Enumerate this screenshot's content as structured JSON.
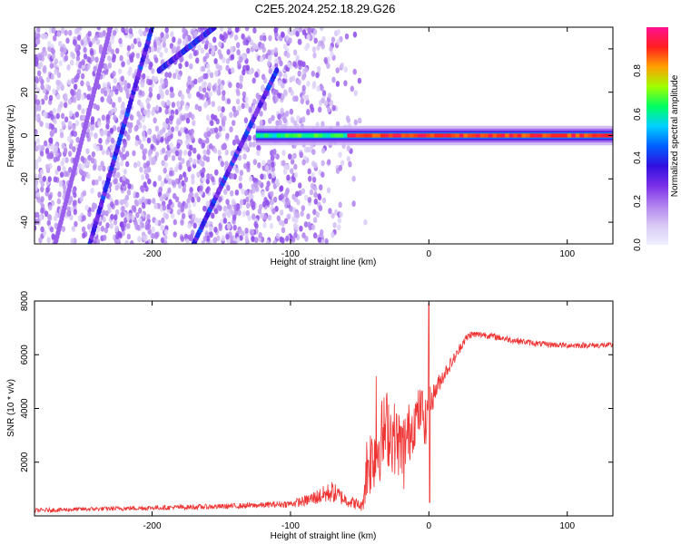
{
  "title": "C2E5.2024.252.18.29.G26",
  "colors": {
    "trace": "#ee3333",
    "colormap": [
      "#f0f0ff",
      "#d8c8f5",
      "#b080ee",
      "#7a2ee8",
      "#3010e0",
      "#0060ff",
      "#00d0ff",
      "#00ff60",
      "#a0ff00",
      "#ffa000",
      "#ff2020",
      "#ff1090"
    ]
  },
  "chart_data": [
    {
      "type": "heatmap",
      "xlabel": "Height of straight line (km)",
      "ylabel": "Frequency (Hz)",
      "xlim": [
        -285,
        133
      ],
      "ylim": [
        -50,
        50
      ],
      "xticks": [
        -200,
        -100,
        0,
        100
      ],
      "yticks": [
        -40,
        -20,
        0,
        20,
        40
      ],
      "colorbar": {
        "label": "Normalized spectral amplitude",
        "range": [
          0,
          1
        ],
        "ticks": [
          "0.0",
          "0.2",
          "0.4",
          "0.6",
          "0.8"
        ]
      },
      "features": {
        "carrier_band": {
          "frequency_hz": 0,
          "x_start": -125,
          "x_end": 133,
          "peak_from_x": -60
        },
        "diagonal_traces": [
          {
            "x": [
              -245,
              -200
            ],
            "f": [
              -50,
              50
            ]
          },
          {
            "x": [
              -170,
              -110
            ],
            "f": [
              -50,
              30
            ]
          },
          {
            "x": [
              -195,
              -155
            ],
            "f": [
              30,
              50
            ]
          },
          {
            "x": [
              -270,
              -230
            ],
            "f": [
              -50,
              50
            ]
          }
        ],
        "noise_fades_at_x": -65
      }
    },
    {
      "type": "line",
      "xlabel": "Height of straight line (km)",
      "ylabel": "SNR (10 * v/v)",
      "xlim": [
        -285,
        133
      ],
      "ylim": [
        0,
        8000
      ],
      "xticks": [
        -200,
        -100,
        0,
        100
      ],
      "yticks": [
        2000,
        4000,
        6000,
        8000
      ],
      "series": [
        {
          "x": [
            -285,
            -250,
            -200,
            -150,
            -120,
            -100,
            -90,
            -75,
            -70,
            -60,
            -48,
            -45,
            -40,
            -35,
            -30,
            -25,
            -20,
            -15,
            -10,
            -5,
            -2,
            0,
            2,
            5,
            10,
            15,
            20,
            25,
            30,
            40,
            60,
            80,
            100,
            133
          ],
          "y": [
            200,
            250,
            300,
            350,
            400,
            450,
            550,
            800,
            900,
            600,
            350,
            1800,
            2300,
            2800,
            3300,
            2900,
            2600,
            3000,
            3600,
            4000,
            3300,
            4600,
            4300,
            4700,
            5200,
            5600,
            6000,
            6500,
            6750,
            6750,
            6550,
            6400,
            6350,
            6350
          ],
          "noise": [
            80,
            80,
            90,
            100,
            110,
            130,
            200,
            350,
            400,
            250,
            200,
            1300,
            1400,
            1500,
            1500,
            1400,
            1200,
            1200,
            1000,
            900,
            900,
            500,
            500,
            400,
            300,
            250,
            200,
            180,
            150,
            130,
            120,
            110,
            110,
            110
          ]
        }
      ],
      "spikes": [
        {
          "x": 0,
          "y": 7900
        },
        {
          "x": 0.6,
          "y": 500
        },
        {
          "x": -38,
          "y": 5200
        },
        {
          "x": -18,
          "y": 1000
        }
      ]
    }
  ]
}
